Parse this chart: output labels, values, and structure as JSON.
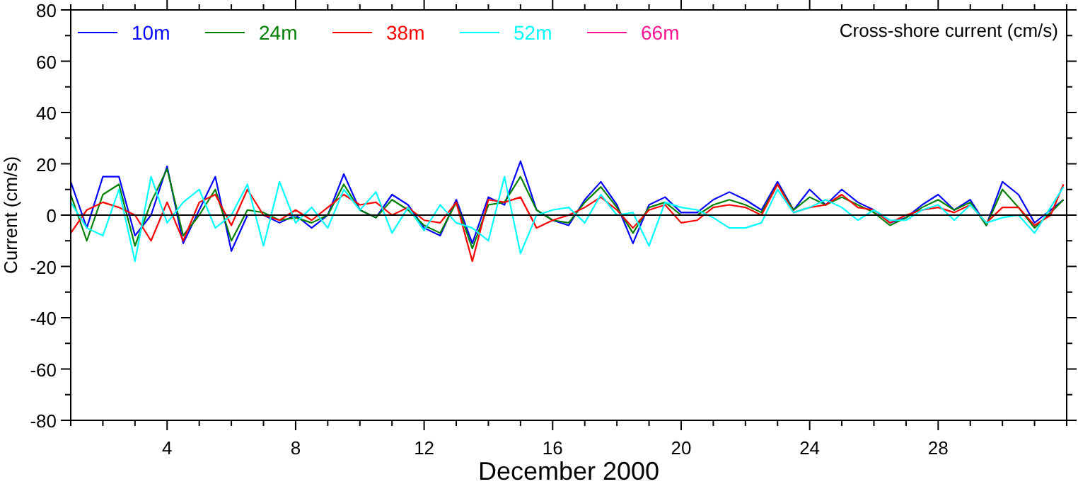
{
  "chart_data": {
    "type": "line",
    "title": "Cross-shore current (cm/s)",
    "xlabel": "December 2000",
    "ylabel": "Current (cm/s)",
    "x": [
      1,
      1.5,
      2,
      2.5,
      3,
      3.5,
      4,
      4.5,
      5,
      5.5,
      6,
      6.5,
      7,
      7.5,
      8,
      8.5,
      9,
      9.5,
      10,
      10.5,
      11,
      11.5,
      12,
      12.5,
      13,
      13.5,
      14,
      14.5,
      15,
      15.5,
      16,
      16.5,
      17,
      17.5,
      18,
      18.5,
      19,
      19.5,
      20,
      20.5,
      21,
      21.5,
      22,
      22.5,
      23,
      23.5,
      24,
      24.5,
      25,
      25.5,
      26,
      26.5,
      27,
      27.5,
      28,
      28.5,
      29,
      29.5,
      30,
      30.5,
      31,
      31.5,
      31.9
    ],
    "series": [
      {
        "name": "10m",
        "color": "#0000ff",
        "values": [
          13,
          -5,
          15,
          15,
          -8,
          0,
          19,
          -11,
          2,
          15,
          -14,
          0,
          0,
          -3,
          0,
          -5,
          0,
          16,
          2,
          -1,
          8,
          4,
          -5,
          -8,
          6,
          -11,
          7,
          4,
          21,
          2,
          -2,
          -4,
          6,
          13,
          4,
          -11,
          4,
          7,
          1,
          1,
          6,
          9,
          6,
          2,
          13,
          2,
          10,
          4,
          10,
          5,
          2,
          -3,
          -1,
          4,
          8,
          2,
          6,
          -4,
          13,
          8,
          -3,
          2,
          6
        ]
      },
      {
        "name": "24m",
        "color": "#008000",
        "values": [
          8,
          -10,
          8,
          12,
          -12,
          5,
          18,
          -8,
          0,
          10,
          -10,
          2,
          1,
          -2,
          -1,
          -3,
          0,
          12,
          2,
          -1,
          6,
          2,
          -4,
          -7,
          5,
          -13,
          4,
          5,
          15,
          2,
          -2,
          -3,
          5,
          11,
          3,
          -7,
          3,
          5,
          0,
          0,
          4,
          6,
          4,
          1,
          12,
          2,
          7,
          4,
          7,
          4,
          1,
          -4,
          -1,
          3,
          6,
          2,
          5,
          -4,
          10,
          3,
          -5,
          1,
          6
        ]
      },
      {
        "name": "38m",
        "color": "#ff0000",
        "values": [
          -7,
          2,
          5,
          3,
          0,
          -10,
          5,
          -10,
          5,
          8,
          -4,
          10,
          0,
          -2,
          2,
          -2,
          3,
          8,
          4,
          5,
          0,
          3,
          -2,
          -3,
          5,
          -18,
          6,
          5,
          7,
          -5,
          -2,
          0,
          3,
          7,
          2,
          -5,
          2,
          4,
          -3,
          -2,
          3,
          4,
          3,
          0,
          12,
          1,
          3,
          4,
          8,
          3,
          2,
          -3,
          0,
          2,
          3,
          1,
          4,
          -3,
          3,
          3,
          -4,
          0,
          12
        ]
      },
      {
        "name": "52m",
        "color": "#00ffff",
        "values": [
          5,
          -5,
          -8,
          10,
          -18,
          15,
          -3,
          5,
          10,
          -5,
          0,
          12,
          -12,
          13,
          -3,
          3,
          -5,
          10,
          2,
          9,
          -7,
          3,
          -6,
          4,
          -3,
          -5,
          -10,
          15,
          -15,
          0,
          2,
          3,
          -3,
          8,
          0,
          1,
          -12,
          5,
          3,
          2,
          -1,
          -5,
          -5,
          -3,
          10,
          1,
          3,
          6,
          3,
          -2,
          2,
          -2,
          -2,
          2,
          4,
          -2,
          4,
          -3,
          -1,
          0,
          -7,
          3,
          11
        ]
      },
      {
        "name": "66m",
        "color": "#ff1493",
        "values": [
          null,
          null,
          null,
          null,
          null,
          null,
          null,
          null,
          null,
          null,
          null,
          null,
          null,
          null,
          null,
          null,
          null,
          null,
          null,
          null,
          null,
          null,
          null,
          null,
          null,
          null,
          null,
          null,
          null,
          null,
          null,
          null,
          null,
          null,
          null,
          null,
          null,
          null,
          null,
          null,
          null,
          null,
          null,
          null,
          null,
          null,
          null,
          null,
          null,
          null,
          null,
          null,
          null,
          null,
          null,
          null,
          null,
          null,
          null,
          null,
          null,
          null,
          null
        ]
      }
    ],
    "xlim": [
      1,
      32
    ],
    "xticks": [
      {
        "value": 1,
        "label": null
      },
      {
        "value": 2,
        "label": null
      },
      {
        "value": 3,
        "label": null
      },
      4,
      {
        "value": 5,
        "label": null
      },
      {
        "value": 6,
        "label": null
      },
      {
        "value": 7,
        "label": null
      },
      8,
      {
        "value": 9,
        "label": null
      },
      {
        "value": 10,
        "label": null
      },
      {
        "value": 11,
        "label": null
      },
      12,
      {
        "value": 13,
        "label": null
      },
      {
        "value": 14,
        "label": null
      },
      {
        "value": 15,
        "label": null
      },
      16,
      {
        "value": 17,
        "label": null
      },
      {
        "value": 18,
        "label": null
      },
      {
        "value": 19,
        "label": null
      },
      20,
      {
        "value": 21,
        "label": null
      },
      {
        "value": 22,
        "label": null
      },
      {
        "value": 23,
        "label": null
      },
      24,
      {
        "value": 25,
        "label": null
      },
      {
        "value": 26,
        "label": null
      },
      {
        "value": 27,
        "label": null
      },
      28,
      {
        "value": 29,
        "label": null
      },
      {
        "value": 30,
        "label": null
      },
      {
        "value": 31,
        "label": null
      },
      {
        "value": 32,
        "label": null
      }
    ],
    "ylim": [
      -80,
      80
    ],
    "yticks": [
      -80,
      {
        "value": -70,
        "label": null
      },
      -60,
      {
        "value": -50,
        "label": null
      },
      -40,
      {
        "value": -30,
        "label": null
      },
      -20,
      {
        "value": -10,
        "label": null
      },
      0,
      {
        "value": 10,
        "label": null
      },
      20,
      {
        "value": 30,
        "label": null
      },
      40,
      {
        "value": 50,
        "label": null
      },
      60,
      {
        "value": 70,
        "label": null
      },
      80
    ],
    "ref_lines": [
      {
        "axis": "y",
        "value": 0,
        "color": "#000000"
      }
    ],
    "grid": false,
    "legend": "top left",
    "line_style": "solid"
  }
}
